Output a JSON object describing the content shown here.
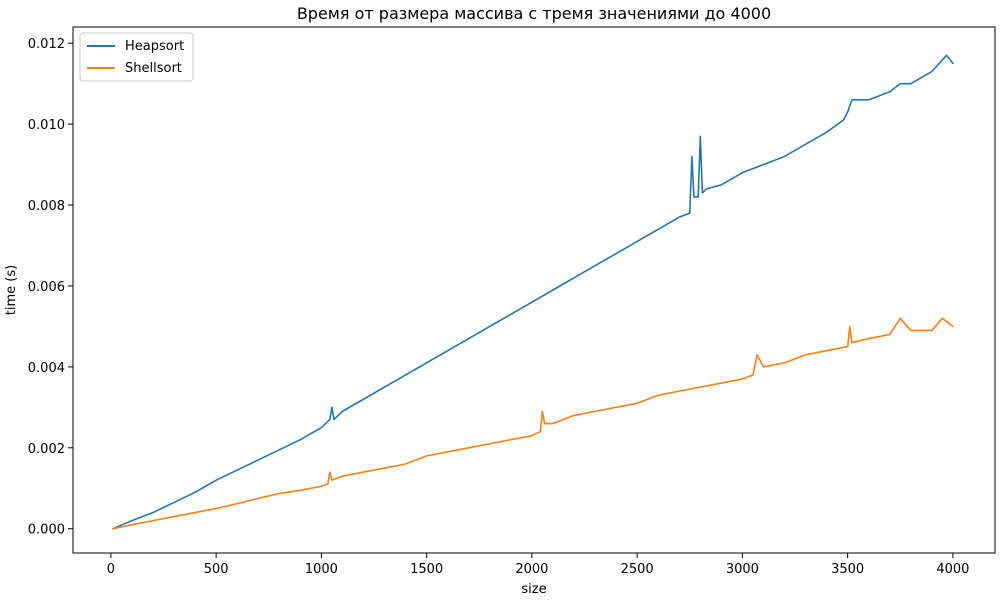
{
  "chart_data": {
    "type": "line",
    "title": "Время от размера массива с тремя значениями до 4000",
    "xlabel": "size",
    "ylabel": "time (s)",
    "xlim": [
      -180,
      4200
    ],
    "ylim": [
      -0.0006,
      0.0124
    ],
    "xticks": [
      0,
      500,
      1000,
      1500,
      2000,
      2500,
      3000,
      3500,
      4000
    ],
    "yticks": [
      0.0,
      0.002,
      0.004,
      0.006,
      0.008,
      0.01,
      0.012
    ],
    "xtick_labels": [
      "0",
      "500",
      "1000",
      "1500",
      "2000",
      "2500",
      "3000",
      "3500",
      "4000"
    ],
    "ytick_labels": [
      "0.000",
      "0.002",
      "0.004",
      "0.006",
      "0.008",
      "0.010",
      "0.012"
    ],
    "grid": false,
    "legend_position": "top-left",
    "series": [
      {
        "name": "Heapsort",
        "color": "#1f77b4",
        "x": [
          10,
          100,
          200,
          300,
          400,
          500,
          600,
          700,
          800,
          900,
          1000,
          1040,
          1050,
          1060,
          1100,
          1200,
          1300,
          1400,
          1500,
          1600,
          1700,
          1800,
          1900,
          2000,
          2100,
          2200,
          2300,
          2400,
          2500,
          2600,
          2700,
          2750,
          2760,
          2770,
          2790,
          2800,
          2810,
          2830,
          2900,
          3000,
          3100,
          3200,
          3300,
          3400,
          3480,
          3500,
          3520,
          3600,
          3700,
          3750,
          3800,
          3900,
          3970,
          4000
        ],
        "y": [
          0.0,
          0.0002,
          0.0004,
          0.00065,
          0.0009,
          0.0012,
          0.00145,
          0.0017,
          0.00195,
          0.0022,
          0.0025,
          0.0027,
          0.003,
          0.0027,
          0.0029,
          0.0032,
          0.0035,
          0.0038,
          0.0041,
          0.0044,
          0.0047,
          0.005,
          0.0053,
          0.0056,
          0.0059,
          0.0062,
          0.0065,
          0.0068,
          0.0071,
          0.0074,
          0.0077,
          0.0078,
          0.0092,
          0.0082,
          0.0082,
          0.0097,
          0.0083,
          0.0084,
          0.0085,
          0.0088,
          0.009,
          0.0092,
          0.0095,
          0.0098,
          0.0101,
          0.0103,
          0.0106,
          0.0106,
          0.0108,
          0.011,
          0.011,
          0.0113,
          0.0117,
          0.0115
        ]
      },
      {
        "name": "Shellsort",
        "color": "#ff7f0e",
        "x": [
          10,
          100,
          200,
          300,
          400,
          500,
          600,
          700,
          800,
          900,
          1000,
          1030,
          1040,
          1050,
          1100,
          1200,
          1300,
          1400,
          1500,
          1600,
          1700,
          1800,
          1900,
          2000,
          2040,
          2050,
          2060,
          2100,
          2200,
          2300,
          2400,
          2500,
          2600,
          2700,
          2800,
          2900,
          3000,
          3050,
          3070,
          3100,
          3200,
          3300,
          3400,
          3500,
          3510,
          3520,
          3600,
          3700,
          3750,
          3800,
          3900,
          3950,
          4000
        ],
        "y": [
          0.0,
          0.0001,
          0.0002,
          0.0003,
          0.0004,
          0.0005,
          0.00062,
          0.00075,
          0.00087,
          0.00095,
          0.00105,
          0.0011,
          0.0014,
          0.0012,
          0.0013,
          0.0014,
          0.0015,
          0.0016,
          0.0018,
          0.0019,
          0.002,
          0.0021,
          0.0022,
          0.0023,
          0.0024,
          0.0029,
          0.0026,
          0.0026,
          0.0028,
          0.0029,
          0.003,
          0.0031,
          0.0033,
          0.0034,
          0.0035,
          0.0036,
          0.0037,
          0.0038,
          0.0043,
          0.004,
          0.0041,
          0.0043,
          0.0044,
          0.0045,
          0.005,
          0.0046,
          0.0047,
          0.0048,
          0.0052,
          0.0049,
          0.0049,
          0.0052,
          0.005
        ]
      }
    ]
  }
}
